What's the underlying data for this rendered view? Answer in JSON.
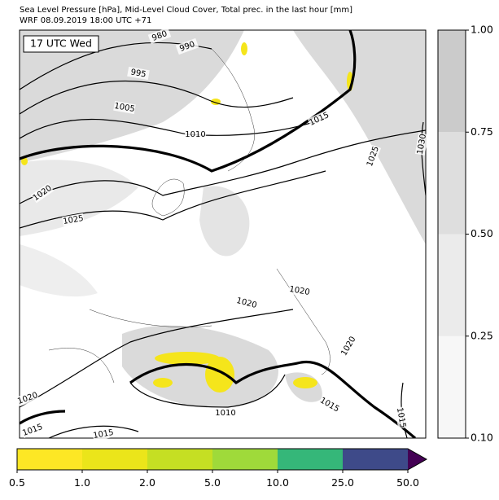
{
  "header": {
    "title_line1": "Sea Level Pressure [hPa], Mid-Level Cloud Cover, Total prec. in the last hour [mm]",
    "title_line2": "WRF 08.09.2019 18:00 UTC +71"
  },
  "map": {
    "time_label": "17 UTC Wed",
    "contour_labels": [
      "980",
      "990",
      "995",
      "1005",
      "1010",
      "1015",
      "1020",
      "1025",
      "1030",
      "1025",
      "1020",
      "1020",
      "1020",
      "1020",
      "1010",
      "1015",
      "1015",
      "1015",
      "1015"
    ]
  },
  "cloud_colorbar": {
    "ticks": [
      "0.10",
      "0.25",
      "0.50",
      "0.75",
      "1.00"
    ],
    "colors": [
      "#f7f7f7",
      "#ebebeb",
      "#dedede",
      "#cbcbcb"
    ]
  },
  "precip_colorbar": {
    "ticks": [
      "0.5",
      "1.0",
      "2.0",
      "5.0",
      "10.0",
      "25.0",
      "50.0"
    ],
    "colors": [
      "#fde725",
      "#ebe51a",
      "#c5df23",
      "#9fda3a",
      "#35b779",
      "#3e4a89",
      "#440154"
    ]
  }
}
